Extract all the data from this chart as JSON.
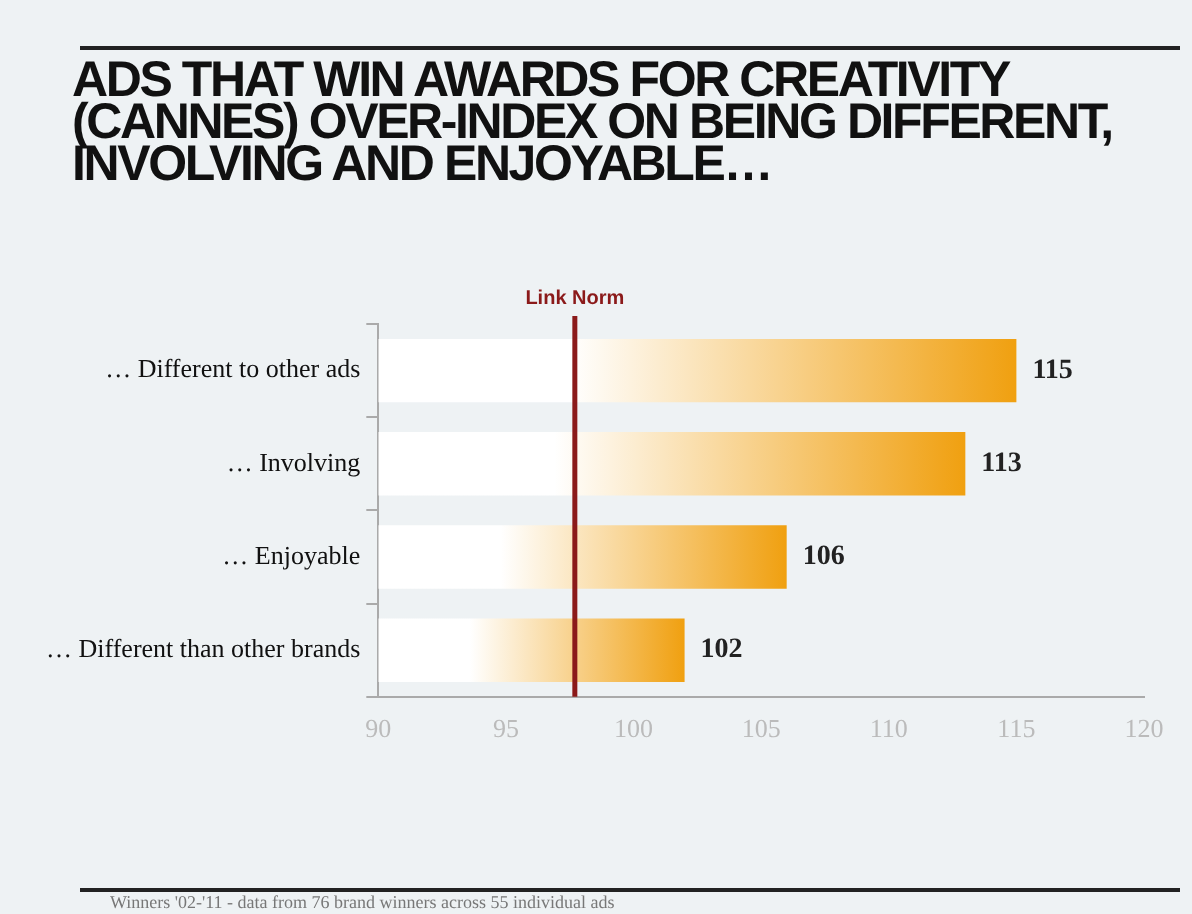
{
  "chart_data": {
    "type": "bar",
    "orientation": "horizontal",
    "title": "ADS THAT WIN AWARDS FOR CREATIVITY (CANNES) OVER-INDEX ON BEING DIFFERENT, INVOLVING AND ENJOYABLE…",
    "categories": [
      "… Different to other ads",
      "… Involving",
      "… Enjoyable",
      "… Different than other brands"
    ],
    "values": [
      115,
      113,
      106,
      102
    ],
    "color": "#f0a010",
    "xlim": [
      90,
      120
    ],
    "xticks": [
      90,
      95,
      100,
      105,
      110,
      115,
      120
    ],
    "grid": false,
    "data_labels": true,
    "ref_lines": [
      {
        "axis": "x",
        "value": 97.7,
        "label": "Link Norm",
        "color": "#8b1a1a"
      }
    ],
    "annotations": [
      "Winners '02-'11 - data from 76 brand winners across 55 individual ads"
    ]
  }
}
